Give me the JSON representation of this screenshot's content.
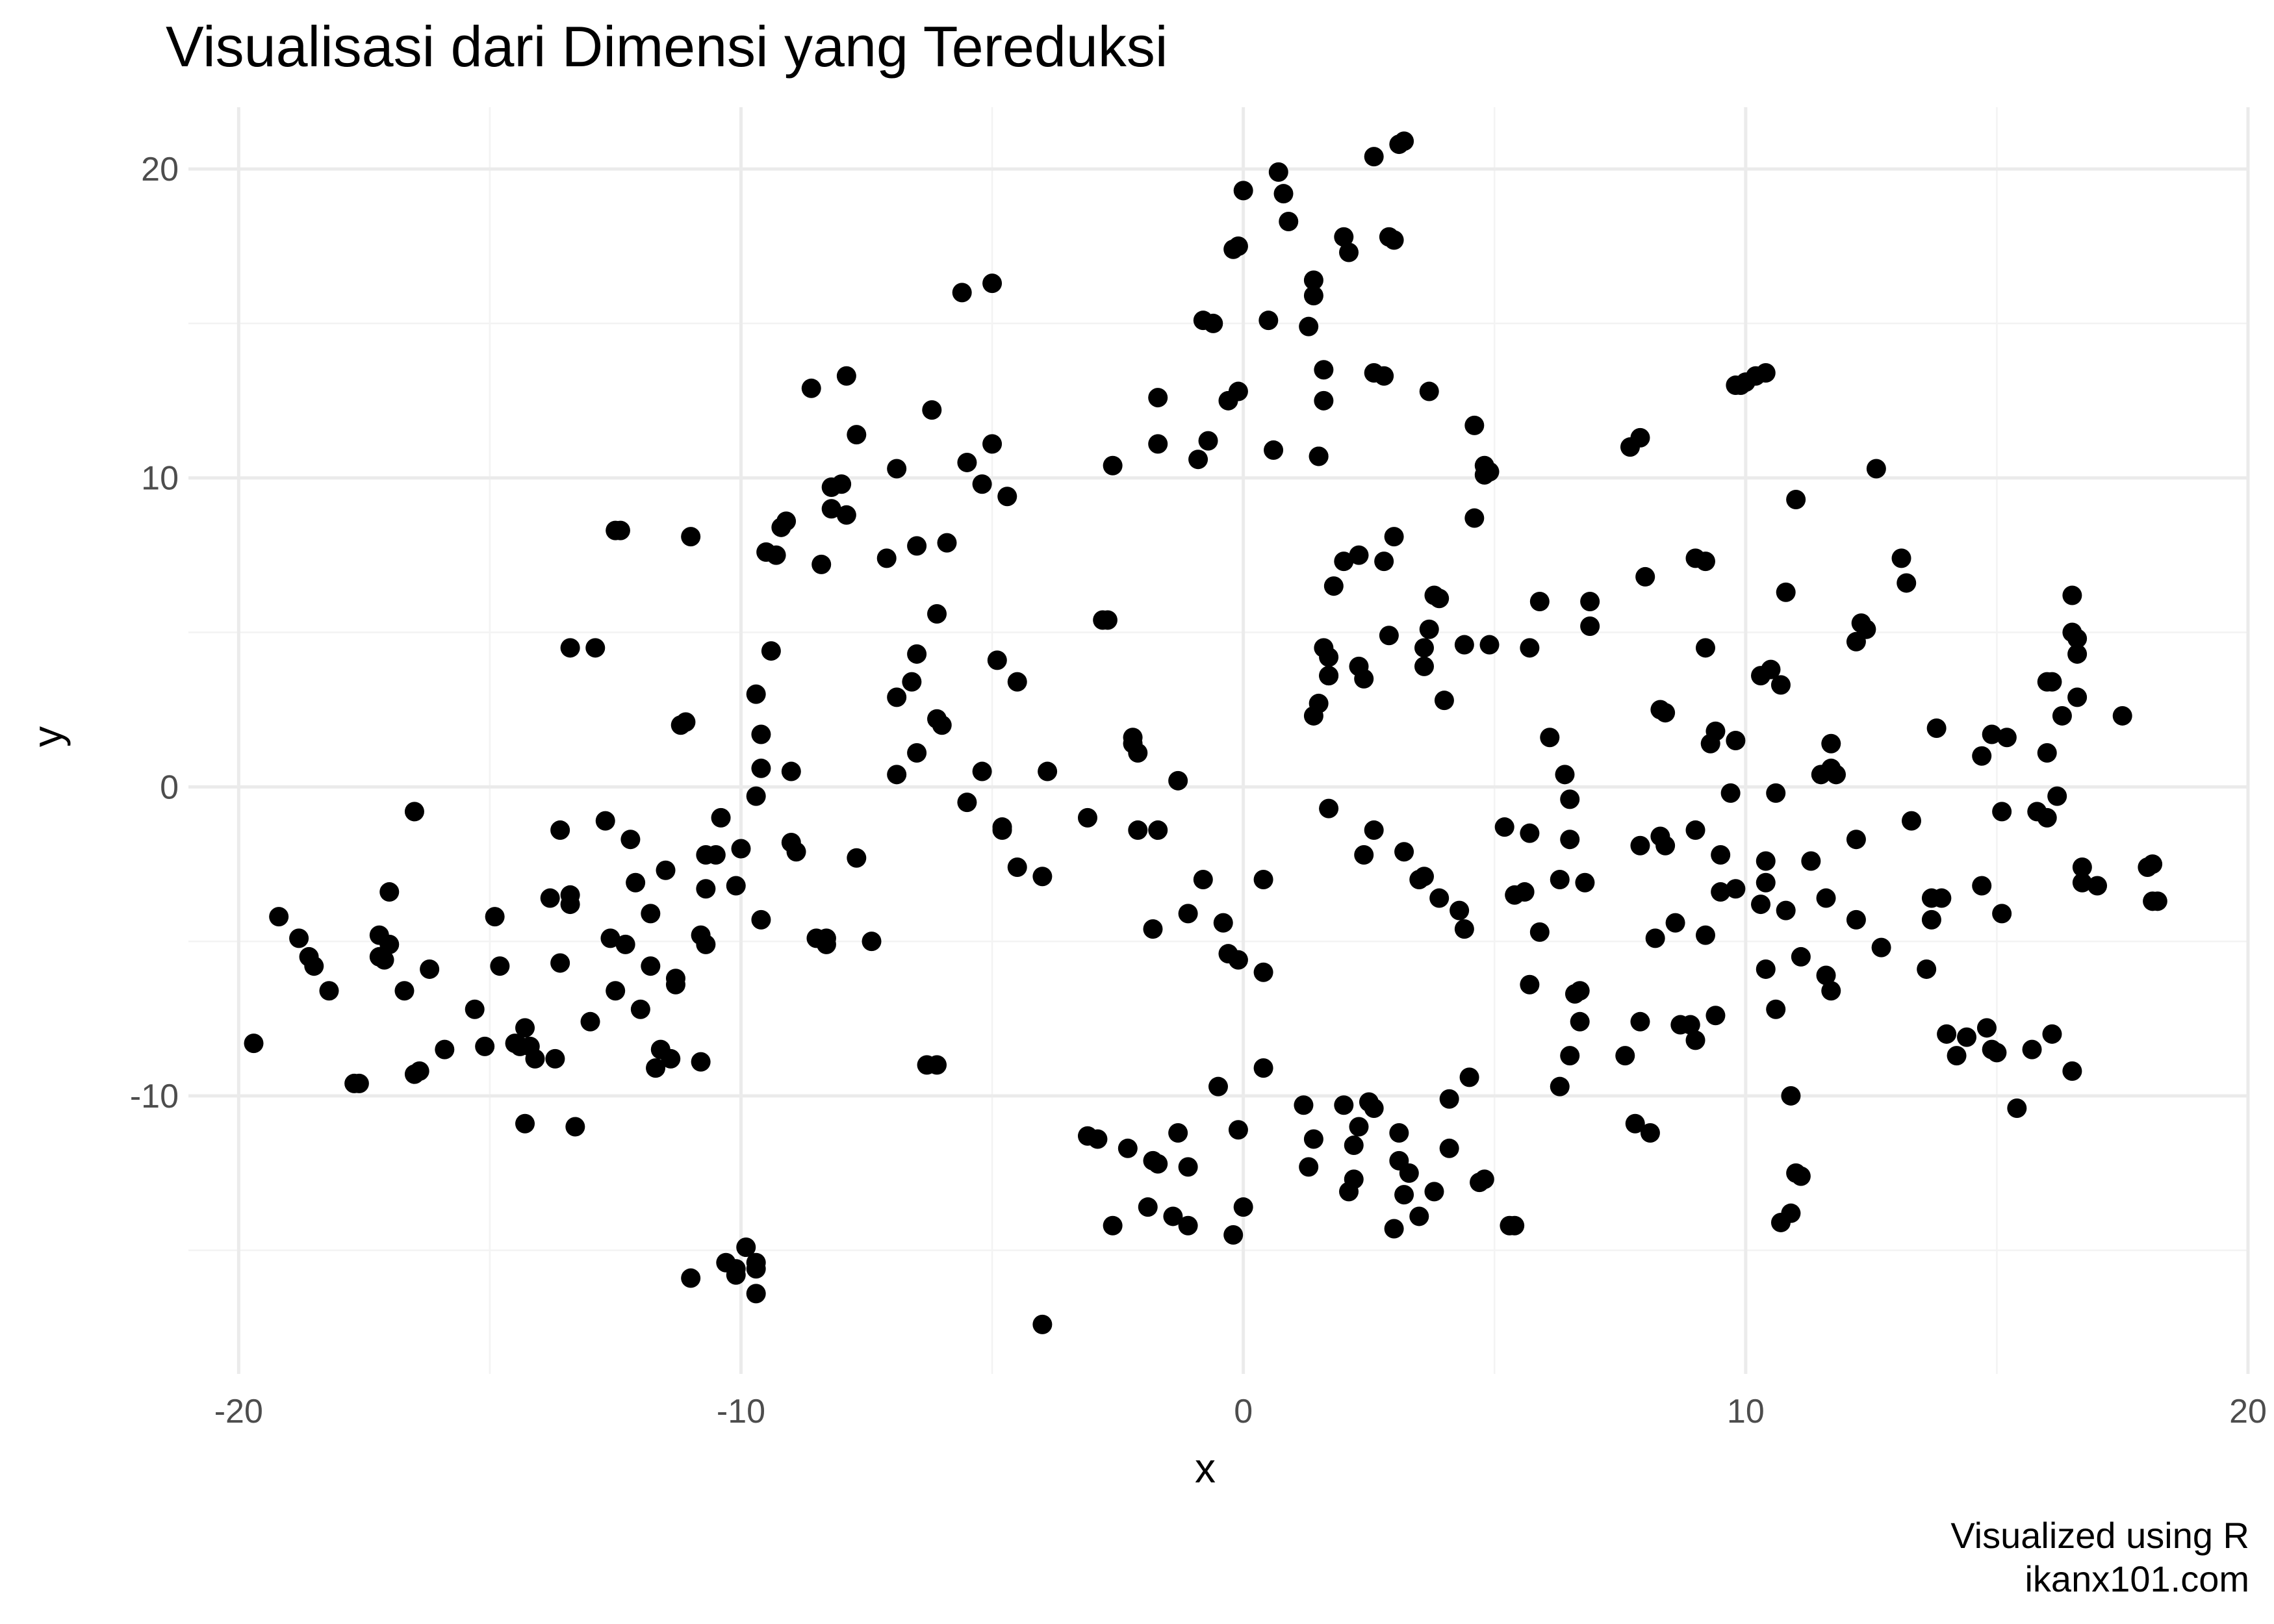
{
  "chart_data": {
    "type": "scatter",
    "title": "Visualisasi dari Dimensi yang Tereduksi",
    "xlabel": "x",
    "ylabel": "y",
    "caption": [
      "Visualized using R",
      "ikanx101.com"
    ],
    "xlim": [
      -21,
      20
    ],
    "ylim": [
      -19,
      22
    ],
    "x_ticks": [
      -20,
      -10,
      0,
      10,
      20
    ],
    "y_ticks": [
      -10,
      0,
      10,
      20
    ],
    "x_tick_labels": [
      "-20",
      "-10",
      "0",
      "10",
      "20"
    ],
    "y_tick_labels": [
      "-10",
      "0",
      "10",
      "20"
    ],
    "grid": true,
    "legend": "none",
    "point_color": "#000000",
    "points": [
      [
        -19.7,
        -8.3
      ],
      [
        -19.2,
        -4.2
      ],
      [
        -18.8,
        -4.9
      ],
      [
        -18.6,
        -5.5
      ],
      [
        -18.5,
        -5.8
      ],
      [
        -18.2,
        -6.6
      ],
      [
        -17.7,
        -9.6
      ],
      [
        -17.6,
        -9.6
      ],
      [
        -17.2,
        -4.8
      ],
      [
        -17.2,
        -5.5
      ],
      [
        -17.1,
        -5.6
      ],
      [
        -17.0,
        -5.1
      ],
      [
        -17.0,
        -3.4
      ],
      [
        -16.7,
        -6.6
      ],
      [
        -16.5,
        -9.3
      ],
      [
        -16.4,
        -9.2
      ],
      [
        -16.5,
        -0.8
      ],
      [
        -16.2,
        -5.9
      ],
      [
        -15.9,
        -8.5
      ],
      [
        -15.3,
        -7.2
      ],
      [
        -15.1,
        -8.4
      ],
      [
        -14.9,
        -4.2
      ],
      [
        -14.8,
        -5.8
      ],
      [
        -14.5,
        -8.3
      ],
      [
        -14.4,
        -8.4
      ],
      [
        -14.3,
        -7.8
      ],
      [
        -14.3,
        -10.9
      ],
      [
        -14.2,
        -8.4
      ],
      [
        -14.1,
        -8.8
      ],
      [
        -13.8,
        -3.6
      ],
      [
        -13.7,
        -8.8
      ],
      [
        -13.6,
        -5.7
      ],
      [
        -13.6,
        -1.4
      ],
      [
        -13.4,
        -3.5
      ],
      [
        -13.4,
        -3.8
      ],
      [
        -13.3,
        -11.0
      ],
      [
        -13.4,
        4.5
      ],
      [
        -13.0,
        -7.6
      ],
      [
        -12.9,
        4.5
      ],
      [
        -12.7,
        -1.1
      ],
      [
        -12.6,
        -4.9
      ],
      [
        -12.5,
        -6.6
      ],
      [
        -12.5,
        8.3
      ],
      [
        -12.4,
        8.3
      ],
      [
        -12.3,
        -5.1
      ],
      [
        -12.2,
        -1.7
      ],
      [
        -12.1,
        -3.1
      ],
      [
        -12.0,
        -7.2
      ],
      [
        -11.8,
        -5.8
      ],
      [
        -11.8,
        -4.1
      ],
      [
        -11.7,
        -9.1
      ],
      [
        -11.6,
        -8.5
      ],
      [
        -11.5,
        -2.7
      ],
      [
        -11.4,
        -8.8
      ],
      [
        -11.3,
        -6.2
      ],
      [
        -11.3,
        -6.4
      ],
      [
        -11.2,
        2.0
      ],
      [
        -11.1,
        2.1
      ],
      [
        -11.0,
        8.1
      ],
      [
        -11.0,
        -15.9
      ],
      [
        -10.8,
        -4.8
      ],
      [
        -10.8,
        -8.9
      ],
      [
        -10.7,
        -2.2
      ],
      [
        -10.7,
        -3.3
      ],
      [
        -10.7,
        -5.1
      ],
      [
        -10.5,
        -2.2
      ],
      [
        -10.4,
        -1.0
      ],
      [
        -10.3,
        -15.4
      ],
      [
        -10.1,
        -15.6
      ],
      [
        -10.1,
        -3.2
      ],
      [
        -10.1,
        -15.8
      ],
      [
        -10.0,
        -2.0
      ],
      [
        -9.9,
        -14.9
      ],
      [
        -9.7,
        -15.4
      ],
      [
        -9.7,
        -15.6
      ],
      [
        -9.7,
        -16.4
      ],
      [
        -9.6,
        -4.3
      ],
      [
        -9.7,
        -0.3
      ],
      [
        -9.7,
        3.0
      ],
      [
        -9.6,
        1.7
      ],
      [
        -9.6,
        0.6
      ],
      [
        -9.4,
        4.4
      ],
      [
        -9.5,
        7.6
      ],
      [
        -9.3,
        7.5
      ],
      [
        -9.2,
        8.4
      ],
      [
        -9.1,
        8.6
      ],
      [
        -9.0,
        0.5
      ],
      [
        -9.0,
        -1.8
      ],
      [
        -8.9,
        -2.1
      ],
      [
        -8.6,
        12.9
      ],
      [
        -8.5,
        -4.9
      ],
      [
        -8.3,
        -4.9
      ],
      [
        -8.3,
        -5.1
      ],
      [
        -8.4,
        7.2
      ],
      [
        -8.2,
        9.7
      ],
      [
        -8.2,
        9.0
      ],
      [
        -8.0,
        9.8
      ],
      [
        -7.9,
        8.8
      ],
      [
        -7.9,
        13.3
      ],
      [
        -7.7,
        11.4
      ],
      [
        -7.7,
        -2.3
      ],
      [
        -7.4,
        -5.0
      ],
      [
        -7.1,
        7.4
      ],
      [
        -6.9,
        10.3
      ],
      [
        -6.9,
        2.9
      ],
      [
        -6.9,
        0.4
      ],
      [
        -6.6,
        3.4
      ],
      [
        -6.5,
        4.3
      ],
      [
        -6.5,
        1.1
      ],
      [
        -6.5,
        7.8
      ],
      [
        -6.3,
        -9.0
      ],
      [
        -6.1,
        -9.0
      ],
      [
        -6.2,
        12.2
      ],
      [
        -6.1,
        2.2
      ],
      [
        -6.0,
        2.0
      ],
      [
        -6.1,
        5.6
      ],
      [
        -5.9,
        7.9
      ],
      [
        -5.6,
        16.0
      ],
      [
        -5.5,
        -0.5
      ],
      [
        -5.5,
        10.5
      ],
      [
        -5.2,
        9.8
      ],
      [
        -5.2,
        0.5
      ],
      [
        -5.0,
        11.1
      ],
      [
        -5.0,
        16.3
      ],
      [
        -4.9,
        4.1
      ],
      [
        -4.8,
        -1.3
      ],
      [
        -4.8,
        -1.4
      ],
      [
        -4.7,
        9.4
      ],
      [
        -4.5,
        -2.6
      ],
      [
        -4.5,
        3.4
      ],
      [
        -4.0,
        -2.9
      ],
      [
        -3.9,
        0.5
      ],
      [
        -4.0,
        -17.4
      ],
      [
        -3.1,
        -1.0
      ],
      [
        -3.1,
        -11.3
      ],
      [
        -2.9,
        -11.4
      ],
      [
        -2.8,
        5.4
      ],
      [
        -2.7,
        5.4
      ],
      [
        -2.6,
        -14.2
      ],
      [
        -2.6,
        10.4
      ],
      [
        -2.3,
        -11.7
      ],
      [
        -2.2,
        1.6
      ],
      [
        -2.2,
        1.4
      ],
      [
        -2.1,
        1.1
      ],
      [
        -2.1,
        -1.4
      ],
      [
        -1.9,
        -13.6
      ],
      [
        -1.8,
        -4.6
      ],
      [
        -1.8,
        -12.1
      ],
      [
        -1.7,
        -12.2
      ],
      [
        -1.7,
        -1.4
      ],
      [
        -1.7,
        11.1
      ],
      [
        -1.7,
        12.6
      ],
      [
        -1.4,
        -13.9
      ],
      [
        -1.3,
        0.2
      ],
      [
        -1.3,
        -11.2
      ],
      [
        -1.1,
        -4.1
      ],
      [
        -1.1,
        -12.3
      ],
      [
        -1.1,
        -14.2
      ],
      [
        -0.9,
        10.6
      ],
      [
        -0.8,
        -3.0
      ],
      [
        -0.8,
        15.1
      ],
      [
        -0.6,
        15.0
      ],
      [
        -0.7,
        11.2
      ],
      [
        -0.5,
        -9.7
      ],
      [
        -0.4,
        -4.4
      ],
      [
        -0.3,
        12.5
      ],
      [
        -0.3,
        -5.4
      ],
      [
        -0.2,
        -14.5
      ],
      [
        -0.2,
        17.4
      ],
      [
        -0.1,
        17.5
      ],
      [
        -0.1,
        12.8
      ],
      [
        -0.1,
        -11.1
      ],
      [
        -0.1,
        -5.6
      ],
      [
        0.0,
        -13.6
      ],
      [
        0.0,
        19.3
      ],
      [
        0.4,
        -3.0
      ],
      [
        0.4,
        -6.0
      ],
      [
        0.4,
        -9.1
      ],
      [
        0.5,
        15.1
      ],
      [
        0.6,
        10.9
      ],
      [
        0.7,
        19.9
      ],
      [
        0.8,
        19.2
      ],
      [
        0.9,
        18.3
      ],
      [
        1.2,
        -10.3
      ],
      [
        1.3,
        14.9
      ],
      [
        1.3,
        -12.3
      ],
      [
        1.4,
        -11.4
      ],
      [
        1.4,
        15.9
      ],
      [
        1.4,
        16.4
      ],
      [
        1.4,
        2.3
      ],
      [
        1.5,
        10.7
      ],
      [
        1.5,
        10.7
      ],
      [
        1.6,
        12.5
      ],
      [
        1.6,
        13.5
      ],
      [
        1.5,
        2.7
      ],
      [
        1.6,
        4.5
      ],
      [
        1.7,
        4.2
      ],
      [
        1.7,
        3.6
      ],
      [
        1.7,
        3.6
      ],
      [
        1.7,
        -0.7
      ],
      [
        1.8,
        6.5
      ],
      [
        2.0,
        17.8
      ],
      [
        2.0,
        -10.3
      ],
      [
        2.0,
        7.3
      ],
      [
        2.1,
        17.3
      ],
      [
        2.1,
        -13.1
      ],
      [
        2.2,
        -12.7
      ],
      [
        2.2,
        -11.6
      ],
      [
        2.3,
        -11.0
      ],
      [
        2.3,
        7.5
      ],
      [
        2.3,
        3.9
      ],
      [
        2.4,
        3.5
      ],
      [
        2.4,
        -2.2
      ],
      [
        2.5,
        -10.2
      ],
      [
        2.6,
        -10.4
      ],
      [
        2.6,
        20.4
      ],
      [
        2.6,
        13.4
      ],
      [
        2.6,
        -1.4
      ],
      [
        2.9,
        4.9
      ],
      [
        2.8,
        7.3
      ],
      [
        2.8,
        13.3
      ],
      [
        2.9,
        17.8
      ],
      [
        3.0,
        17.7
      ],
      [
        3.0,
        8.1
      ],
      [
        3.1,
        20.8
      ],
      [
        3.2,
        20.9
      ],
      [
        3.1,
        -11.2
      ],
      [
        3.1,
        -12.1
      ],
      [
        3.2,
        -13.2
      ],
      [
        3.0,
        -14.3
      ],
      [
        3.2,
        -2.1
      ],
      [
        3.3,
        -12.5
      ],
      [
        3.5,
        -13.9
      ],
      [
        3.5,
        -3.0
      ],
      [
        3.6,
        -2.9
      ],
      [
        3.6,
        3.9
      ],
      [
        3.6,
        4.5
      ],
      [
        3.7,
        5.1
      ],
      [
        3.7,
        12.8
      ],
      [
        3.8,
        -13.1
      ],
      [
        3.8,
        6.2
      ],
      [
        3.9,
        6.1
      ],
      [
        3.9,
        -3.6
      ],
      [
        4.0,
        2.8
      ],
      [
        4.1,
        -11.7
      ],
      [
        4.1,
        -10.1
      ],
      [
        4.3,
        -4.0
      ],
      [
        4.4,
        4.6
      ],
      [
        4.4,
        -4.6
      ],
      [
        4.5,
        -9.4
      ],
      [
        4.6,
        11.7
      ],
      [
        4.6,
        8.7
      ],
      [
        4.7,
        -12.8
      ],
      [
        4.8,
        -12.7
      ],
      [
        4.8,
        10.4
      ],
      [
        4.8,
        10.1
      ],
      [
        4.9,
        10.2
      ],
      [
        4.9,
        4.6
      ],
      [
        5.2,
        -1.3
      ],
      [
        5.3,
        -14.2
      ],
      [
        5.4,
        -14.2
      ],
      [
        5.4,
        -3.5
      ],
      [
        5.6,
        -3.4
      ],
      [
        5.7,
        4.5
      ],
      [
        5.7,
        -1.5
      ],
      [
        5.7,
        -6.4
      ],
      [
        5.9,
        -4.7
      ],
      [
        5.9,
        6.0
      ],
      [
        6.1,
        1.6
      ],
      [
        6.3,
        -3.0
      ],
      [
        6.3,
        -9.7
      ],
      [
        6.4,
        0.4
      ],
      [
        6.5,
        -0.4
      ],
      [
        6.5,
        -1.7
      ],
      [
        6.5,
        -8.7
      ],
      [
        6.6,
        -6.7
      ],
      [
        6.7,
        -6.6
      ],
      [
        6.7,
        -7.6
      ],
      [
        6.8,
        -3.1
      ],
      [
        6.9,
        5.2
      ],
      [
        6.9,
        6.0
      ],
      [
        7.6,
        -8.7
      ],
      [
        7.7,
        11.0
      ],
      [
        7.8,
        -10.9
      ],
      [
        7.9,
        -1.9
      ],
      [
        7.9,
        -7.6
      ],
      [
        8.0,
        6.8
      ],
      [
        7.9,
        11.3
      ],
      [
        8.1,
        -11.2
      ],
      [
        8.2,
        -4.9
      ],
      [
        8.3,
        -1.6
      ],
      [
        8.3,
        2.5
      ],
      [
        8.4,
        2.4
      ],
      [
        8.4,
        -1.9
      ],
      [
        8.6,
        -4.4
      ],
      [
        8.7,
        -7.7
      ],
      [
        8.9,
        -7.7
      ],
      [
        9.0,
        -1.4
      ],
      [
        9.0,
        7.4
      ],
      [
        9.0,
        -8.2
      ],
      [
        9.2,
        7.3
      ],
      [
        9.2,
        -4.8
      ],
      [
        9.2,
        4.5
      ],
      [
        9.3,
        1.4
      ],
      [
        9.4,
        1.8
      ],
      [
        9.4,
        -7.4
      ],
      [
        9.5,
        -2.2
      ],
      [
        9.5,
        -3.4
      ],
      [
        9.7,
        -0.2
      ],
      [
        9.8,
        -3.3
      ],
      [
        9.8,
        13.0
      ],
      [
        9.8,
        1.5
      ],
      [
        9.9,
        13.0
      ],
      [
        10.0,
        13.1
      ],
      [
        10.2,
        13.3
      ],
      [
        10.3,
        -3.8
      ],
      [
        10.3,
        3.6
      ],
      [
        10.4,
        13.4
      ],
      [
        10.4,
        -5.9
      ],
      [
        10.4,
        -2.4
      ],
      [
        10.4,
        -3.1
      ],
      [
        10.5,
        3.8
      ],
      [
        10.6,
        -0.2
      ],
      [
        10.6,
        -7.2
      ],
      [
        10.7,
        3.3
      ],
      [
        10.8,
        -4.0
      ],
      [
        10.8,
        6.3
      ],
      [
        10.7,
        -14.1
      ],
      [
        10.9,
        -13.8
      ],
      [
        10.9,
        -10.0
      ],
      [
        11.0,
        9.3
      ],
      [
        11.0,
        -12.5
      ],
      [
        11.1,
        -12.6
      ],
      [
        11.1,
        -5.5
      ],
      [
        11.3,
        -2.4
      ],
      [
        11.5,
        0.4
      ],
      [
        11.6,
        -6.1
      ],
      [
        11.6,
        -3.6
      ],
      [
        11.7,
        -6.6
      ],
      [
        11.7,
        1.4
      ],
      [
        11.7,
        0.6
      ],
      [
        11.8,
        0.4
      ],
      [
        12.2,
        4.7
      ],
      [
        12.2,
        -1.7
      ],
      [
        12.2,
        -4.3
      ],
      [
        12.3,
        5.3
      ],
      [
        12.4,
        5.1
      ],
      [
        12.6,
        10.3
      ],
      [
        12.7,
        -5.2
      ],
      [
        13.1,
        7.4
      ],
      [
        13.2,
        6.6
      ],
      [
        13.3,
        -1.1
      ],
      [
        13.6,
        -5.9
      ],
      [
        13.7,
        -4.3
      ],
      [
        13.7,
        -3.6
      ],
      [
        13.8,
        1.9
      ],
      [
        13.9,
        -3.6
      ],
      [
        14.0,
        -8.0
      ],
      [
        14.2,
        -8.7
      ],
      [
        14.4,
        -8.1
      ],
      [
        14.7,
        -3.2
      ],
      [
        14.7,
        1.0
      ],
      [
        14.8,
        -7.8
      ],
      [
        14.9,
        1.7
      ],
      [
        14.9,
        -8.5
      ],
      [
        15.0,
        -8.6
      ],
      [
        15.1,
        -0.8
      ],
      [
        15.1,
        -4.1
      ],
      [
        15.2,
        1.6
      ],
      [
        15.4,
        -10.4
      ],
      [
        15.7,
        -8.5
      ],
      [
        15.8,
        -0.8
      ],
      [
        16.0,
        -1.0
      ],
      [
        16.0,
        1.1
      ],
      [
        16.0,
        3.4
      ],
      [
        16.1,
        -8.0
      ],
      [
        16.1,
        3.4
      ],
      [
        16.2,
        -0.3
      ],
      [
        16.3,
        2.3
      ],
      [
        16.5,
        6.2
      ],
      [
        16.5,
        5.0
      ],
      [
        16.6,
        4.8
      ],
      [
        16.6,
        4.3
      ],
      [
        16.6,
        2.9
      ],
      [
        16.5,
        -9.2
      ],
      [
        16.7,
        -2.6
      ],
      [
        16.7,
        -3.1
      ],
      [
        17.0,
        -3.2
      ],
      [
        17.5,
        2.3
      ],
      [
        18.0,
        -2.6
      ],
      [
        18.1,
        -2.5
      ],
      [
        18.1,
        -3.7
      ],
      [
        18.2,
        -3.7
      ]
    ]
  }
}
